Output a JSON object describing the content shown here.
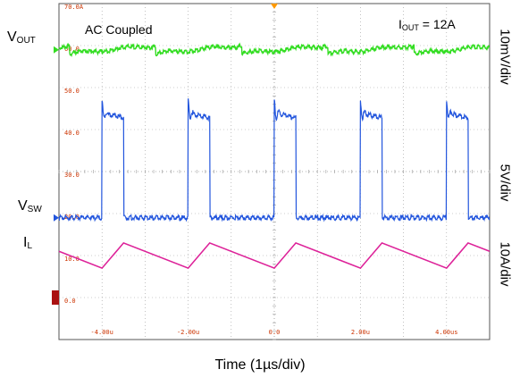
{
  "labels": {
    "vout_main": "V",
    "vout_sub": "OUT",
    "vsw_main": "V",
    "vsw_sub": "SW",
    "il_main": "I",
    "il_sub": "L",
    "ac_coupled": "AC Coupled",
    "iout_main": "I",
    "iout_sub": "OUT",
    "iout_value": " = 12A",
    "scale_vout": "10mV/div",
    "scale_vsw": "5V/div",
    "scale_il": "10A/div",
    "time_caption": "Time (1µs/div)"
  },
  "colors": {
    "vout": "#33dd22",
    "vsw": "#2255dd",
    "il": "#dd2299",
    "grid": "#9a9a9a",
    "tick_text": "#cc3300",
    "trigger": "#ff9900",
    "ground_marker": "#aa1111"
  },
  "chart_data": {
    "type": "line",
    "title": "",
    "xlabel": "Time (1µs/div)",
    "x_range_us": [
      -5.0,
      5.0
    ],
    "x_tick_labels": [
      "-4.00u",
      "-2.00u",
      "0.0",
      "2.00u",
      "4.00us"
    ],
    "x_tick_values_us": [
      -4,
      -2,
      0,
      2,
      4
    ],
    "grid_y_labels": [
      "70.0A",
      "60.0",
      "50.0",
      "40.0",
      "30.0",
      "20.0",
      "10.0",
      "0.0"
    ],
    "grid_divisions": {
      "x": 10,
      "y": 8
    },
    "y_range_grid": [
      -1,
      7
    ],
    "switching_edges_us": [
      -4.75,
      -2.75,
      -0.75,
      1.25,
      3.25
    ],
    "period_us": 2.0,
    "series": [
      {
        "name": "VOUT",
        "scale": "10mV/div",
        "coupling": "AC Coupled",
        "baseline_div": 5.9,
        "ripple_div": 0.12,
        "color_key": "vout",
        "x_us": [
          -5,
          -4.5,
          -4.25,
          -4.0,
          -3.0,
          -2.5,
          -2.25,
          -2.0,
          -1.0,
          -0.5,
          -0.25,
          0.0,
          1.0,
          1.5,
          1.75,
          2.0,
          3.0,
          3.5,
          3.75,
          4.0,
          5.0
        ],
        "y_mV": [
          -1,
          -2,
          -1,
          1,
          0,
          -2,
          -1,
          1,
          0,
          -2,
          -1,
          1,
          0,
          -2,
          -1,
          1,
          0,
          -2,
          -1,
          1,
          -1
        ]
      },
      {
        "name": "VSW",
        "scale": "5V/div",
        "color_key": "vsw",
        "baseline_div": 1.9,
        "high_V": 12.5,
        "high_duration_us": 0.5,
        "high_start_us": [
          -4.0,
          -2.0,
          0.0,
          2.0,
          4.0
        ],
        "x_us": [
          -5,
          -4.0,
          -3.95,
          -3.5,
          -3.45,
          -2.0,
          -1.95,
          -1.5,
          -1.45,
          0.0,
          0.05,
          0.5,
          0.55,
          2.0,
          2.05,
          2.5,
          2.55,
          4.0,
          4.05,
          4.5,
          4.55,
          5.0
        ],
        "y_V": [
          0,
          0,
          12.5,
          12.5,
          0,
          0,
          12.5,
          12.5,
          0,
          0,
          12.5,
          12.5,
          0,
          0,
          12.5,
          12.5,
          0,
          0,
          12.5,
          12.5,
          0,
          0
        ]
      },
      {
        "name": "IL",
        "scale": "10A/div",
        "color_key": "il",
        "x_us": [
          -5,
          -4.0,
          -3.5,
          -2.0,
          -1.5,
          0.0,
          0.5,
          2.0,
          2.5,
          4.0,
          4.5,
          5.0
        ],
        "y_A": [
          11,
          7,
          13,
          7,
          13,
          7,
          13,
          7,
          13,
          7,
          13,
          11
        ]
      }
    ]
  }
}
